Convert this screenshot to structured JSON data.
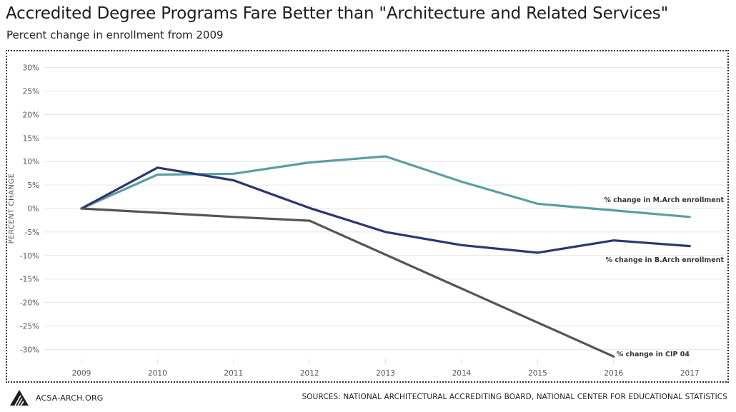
{
  "colors": {
    "march": "#5a9ea2",
    "barch": "#2c3770",
    "cip": "#555555",
    "grid": "#e4e4e4",
    "tick_text": "#555555"
  },
  "header": {
    "title": "Accredited Degree Programs Fare Better than \"Architecture and Related Services\"",
    "subtitle": "Percent change in enrollment from 2009"
  },
  "footer": {
    "site": "ACSA-ARCH.ORG",
    "logo_icon": "acsa-logo-icon",
    "sources": "SOURCES: NATIONAL ARCHITECTURAL ACCREDITING BOARD, NATIONAL CENTER FOR EDUCATIONAL STATISTICS"
  },
  "chart_data": {
    "type": "line",
    "title": "Accredited Degree Programs Fare Better than \"Architecture and Related Services\"",
    "subtitle": "Percent change in enrollment from 2009",
    "xlabel": "",
    "ylabel": "PERCENT CHANGE",
    "ylim": [
      -33,
      32
    ],
    "y_ticks": [
      30,
      25,
      20,
      15,
      10,
      5,
      0,
      -5,
      -10,
      -15,
      -20,
      -25,
      -30
    ],
    "y_tick_labels": [
      "30%",
      "25%",
      "20%",
      "15%",
      "10%",
      "5%",
      "0%",
      "-5%",
      "-10%",
      "-15%",
      "-20%",
      "-25%",
      "-30%"
    ],
    "categories": [
      "2009",
      "2010",
      "2011",
      "2012",
      "2013",
      "2014",
      "2015",
      "2016",
      "2017"
    ],
    "grid": true,
    "legend": "inline labels at line ends",
    "series": [
      {
        "name": "% change in M.Arch enrollment",
        "color": "#5a9ea2",
        "values": [
          0,
          7.2,
          7.4,
          9.8,
          11.1,
          5.7,
          1.0,
          -0.4,
          -1.8
        ]
      },
      {
        "name": "% change in B.Arch enrollment",
        "color": "#2c3770",
        "values": [
          0,
          8.7,
          6.0,
          0.1,
          -5.0,
          -7.8,
          -9.4,
          -6.8,
          -8.0
        ]
      },
      {
        "name": "% change in CIP 04",
        "color": "#555555",
        "values": [
          0,
          -0.9,
          -1.8,
          -2.6,
          null,
          null,
          null,
          -31.5,
          null
        ],
        "segments_note": ""
      }
    ]
  }
}
